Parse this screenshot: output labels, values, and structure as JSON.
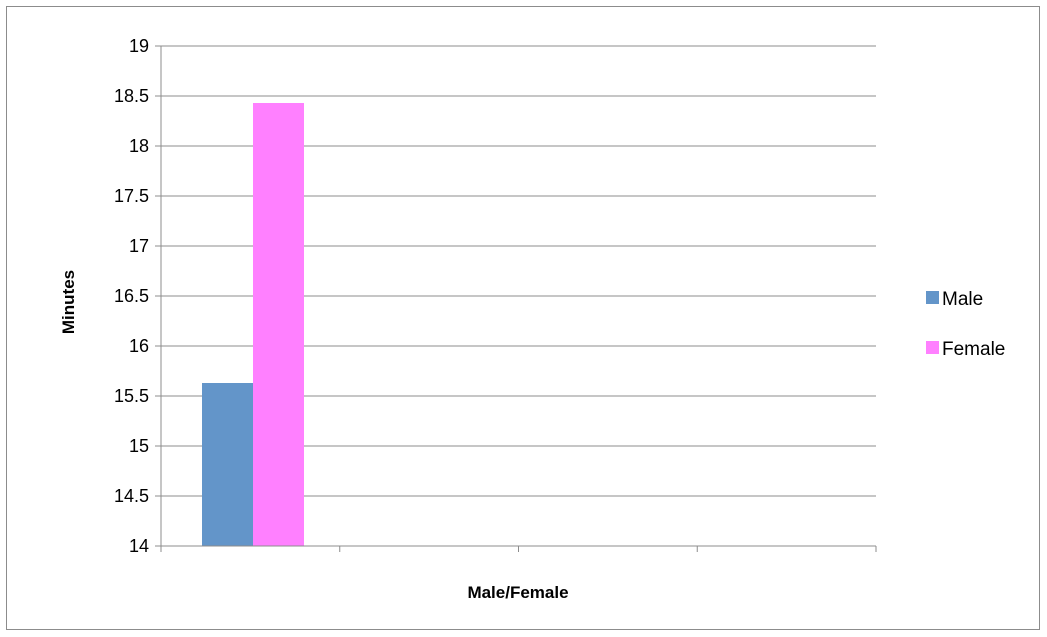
{
  "chart_data": {
    "type": "bar",
    "categories": [
      ""
    ],
    "series": [
      {
        "name": "Male",
        "values": [
          15.63
        ],
        "color": "#6395c9"
      },
      {
        "name": "Female",
        "values": [
          18.43
        ],
        "color": "#ff80ff"
      }
    ],
    "xlabel": "Male/Female",
    "ylabel": "Minutes",
    "ylim": [
      14,
      19
    ],
    "ytick_step": 0.5,
    "yticks": [
      "14",
      "14.5",
      "15",
      "15.5",
      "16",
      "16.5",
      "17",
      "17.5",
      "18",
      "18.5",
      "19"
    ],
    "x_divisions": 4,
    "grid": true,
    "legend_position": "right"
  }
}
